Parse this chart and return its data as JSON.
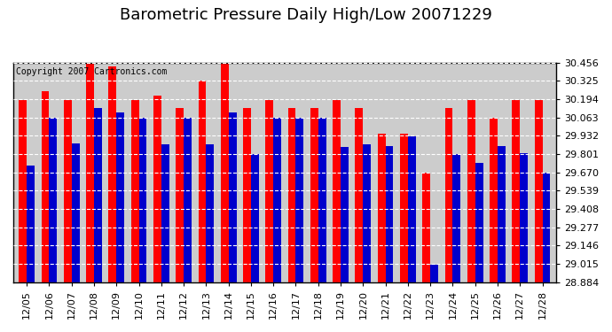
{
  "title": "Barometric Pressure Daily High/Low 20071229",
  "copyright": "Copyright 2007 Cartronics.com",
  "dates": [
    "12/05",
    "12/06",
    "12/07",
    "12/08",
    "12/09",
    "12/10",
    "12/11",
    "12/12",
    "12/13",
    "12/14",
    "12/15",
    "12/16",
    "12/17",
    "12/18",
    "12/19",
    "12/20",
    "12/21",
    "12/22",
    "12/23",
    "12/24",
    "12/25",
    "12/26",
    "12/27",
    "12/28"
  ],
  "highs": [
    30.19,
    30.25,
    30.19,
    30.46,
    30.43,
    30.19,
    30.22,
    30.13,
    30.33,
    30.46,
    30.13,
    30.19,
    30.13,
    30.13,
    30.19,
    30.13,
    29.95,
    29.95,
    29.67,
    30.13,
    30.19,
    30.06,
    30.19,
    30.19
  ],
  "lows": [
    29.72,
    30.06,
    29.88,
    30.13,
    30.1,
    30.06,
    29.87,
    30.06,
    29.87,
    30.1,
    29.8,
    30.06,
    30.06,
    30.06,
    29.85,
    29.87,
    29.86,
    29.93,
    29.01,
    29.8,
    29.74,
    29.86,
    29.81,
    29.67
  ],
  "high_color": "#ff0000",
  "low_color": "#0000cc",
  "bg_color": "#ffffff",
  "plot_bg_color": "#cccccc",
  "grid_color": "#ffffff",
  "ymin": 28.884,
  "ymax": 30.456,
  "yticks": [
    28.884,
    29.015,
    29.146,
    29.277,
    29.408,
    29.539,
    29.67,
    29.801,
    29.932,
    30.063,
    30.194,
    30.325,
    30.456
  ],
  "title_fontsize": 13,
  "tick_fontsize": 8,
  "copyright_fontsize": 7
}
